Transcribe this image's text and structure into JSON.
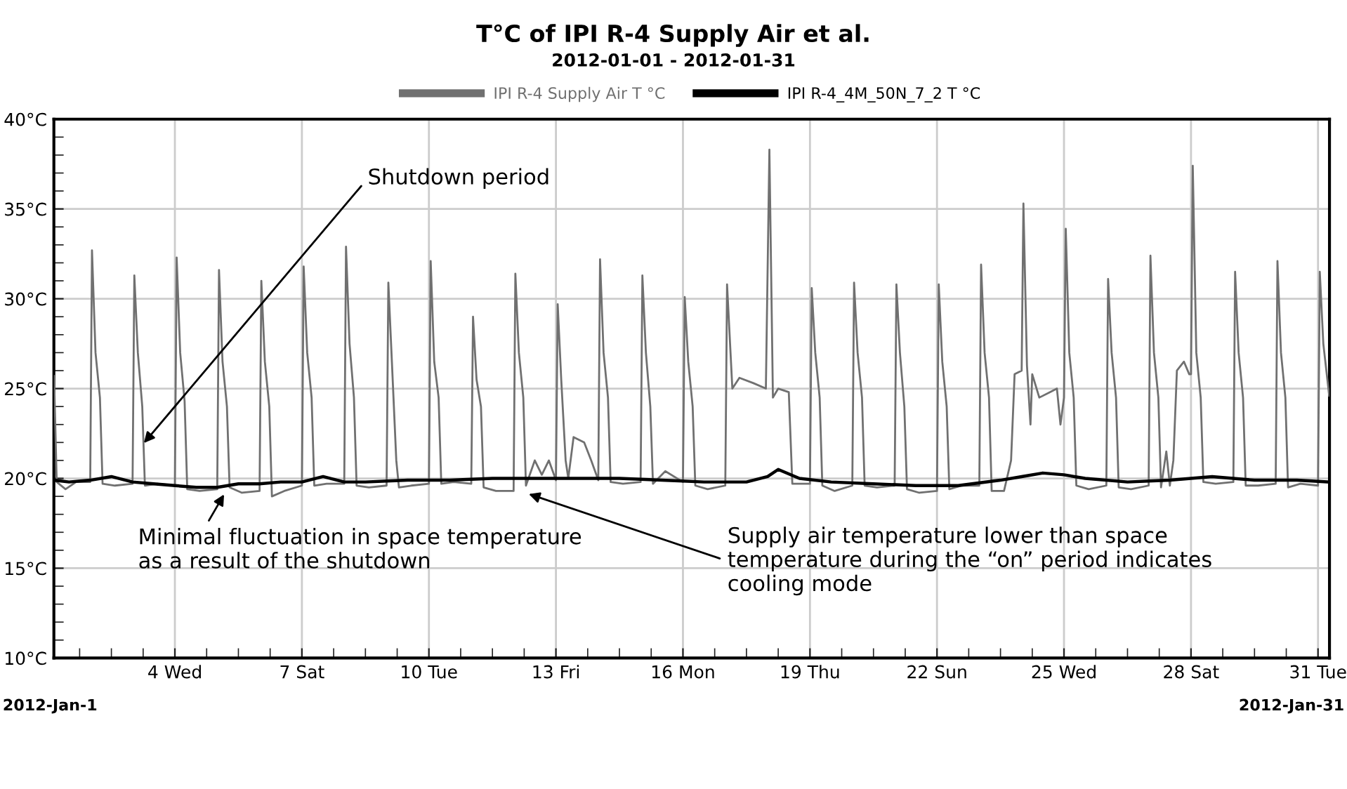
{
  "chart_data": {
    "type": "line",
    "title": "T°C of IPI R-4 Supply Air et al.",
    "subtitle": "2012-01-01 - 2012-01-31",
    "legend": "top",
    "grid": true,
    "marker": "none",
    "line_style": "solid",
    "xlim": [
      "2012-01-01T03:24",
      "2012-01-31T06:30"
    ],
    "xticks": [
      {
        "value": "2012-01-01T18:00",
        "label": null
      },
      {
        "value": "2012-01-02T12:00",
        "label": null
      },
      {
        "value": "2012-01-03T06:00",
        "label": null
      },
      {
        "value": "2012-01-04",
        "label": "4 Wed"
      },
      {
        "value": "2012-01-04T18:00",
        "label": null
      },
      {
        "value": "2012-01-05T12:00",
        "label": null
      },
      {
        "value": "2012-01-06T06:00",
        "label": null
      },
      {
        "value": "2012-01-07",
        "label": "7 Sat"
      },
      {
        "value": "2012-01-07T18:00",
        "label": null
      },
      {
        "value": "2012-01-08T12:00",
        "label": null
      },
      {
        "value": "2012-01-09T06:00",
        "label": null
      },
      {
        "value": "2012-01-10",
        "label": "10 Tue"
      },
      {
        "value": "2012-01-10T18:00",
        "label": null
      },
      {
        "value": "2012-01-11T12:00",
        "label": null
      },
      {
        "value": "2012-01-12T06:00",
        "label": null
      },
      {
        "value": "2012-01-13",
        "label": "13 Fri"
      },
      {
        "value": "2012-01-13T18:00",
        "label": null
      },
      {
        "value": "2012-01-14T12:00",
        "label": null
      },
      {
        "value": "2012-01-15T06:00",
        "label": null
      },
      {
        "value": "2012-01-16",
        "label": "16 Mon"
      },
      {
        "value": "2012-01-16T18:00",
        "label": null
      },
      {
        "value": "2012-01-17T12:00",
        "label": null
      },
      {
        "value": "2012-01-18T06:00",
        "label": null
      },
      {
        "value": "2012-01-19",
        "label": "19 Thu"
      },
      {
        "value": "2012-01-19T18:00",
        "label": null
      },
      {
        "value": "2012-01-20T12:00",
        "label": null
      },
      {
        "value": "2012-01-21T06:00",
        "label": null
      },
      {
        "value": "2012-01-22",
        "label": "22 Sun"
      },
      {
        "value": "2012-01-22T18:00",
        "label": null
      },
      {
        "value": "2012-01-23T12:00",
        "label": null
      },
      {
        "value": "2012-01-24T06:00",
        "label": null
      },
      {
        "value": "2012-01-25",
        "label": "25 Wed"
      },
      {
        "value": "2012-01-25T18:00",
        "label": null
      },
      {
        "value": "2012-01-26T12:00",
        "label": null
      },
      {
        "value": "2012-01-27T06:00",
        "label": null
      },
      {
        "value": "2012-01-28",
        "label": "28 Sat"
      },
      {
        "value": "2012-01-28T18:00",
        "label": null
      },
      {
        "value": "2012-01-29T12:00",
        "label": null
      },
      {
        "value": "2012-01-30T06:00",
        "label": null
      },
      {
        "value": "2012-01-31",
        "label": "31 Tue"
      }
    ],
    "ylim": [
      10,
      40
    ],
    "yticks": [
      {
        "value": 10,
        "label": "10°C"
      },
      {
        "value": 11,
        "label": null
      },
      {
        "value": 12,
        "label": null
      },
      {
        "value": 13,
        "label": null
      },
      {
        "value": 14,
        "label": null
      },
      {
        "value": 15,
        "label": "15°C"
      },
      {
        "value": 16,
        "label": null
      },
      {
        "value": 17,
        "label": null
      },
      {
        "value": 18,
        "label": null
      },
      {
        "value": 19,
        "label": null
      },
      {
        "value": 20,
        "label": "20°C"
      },
      {
        "value": 21,
        "label": null
      },
      {
        "value": 22,
        "label": null
      },
      {
        "value": 23,
        "label": null
      },
      {
        "value": 24,
        "label": null
      },
      {
        "value": 25,
        "label": "25°C"
      },
      {
        "value": 26,
        "label": null
      },
      {
        "value": 27,
        "label": null
      },
      {
        "value": 28,
        "label": null
      },
      {
        "value": 29,
        "label": null
      },
      {
        "value": 30,
        "label": "30°C"
      },
      {
        "value": 31,
        "label": null
      },
      {
        "value": 32,
        "label": null
      },
      {
        "value": 33,
        "label": null
      },
      {
        "value": 34,
        "label": null
      },
      {
        "value": 35,
        "label": "35°C"
      },
      {
        "value": 36,
        "label": null
      },
      {
        "value": 37,
        "label": null
      },
      {
        "value": 38,
        "label": null
      },
      {
        "value": 39,
        "label": null
      },
      {
        "value": 40,
        "label": "40°C"
      }
    ],
    "series": [
      {
        "name": "IPI R-4 Supply Air T °C",
        "color": "#707070",
        "x": [
          "2012-01-01T03:30",
          "2012-01-01T05:00",
          "2012-01-01T10:00",
          "2012-01-01T16:00",
          "2012-01-02T00:00",
          "2012-01-02T01:00",
          "2012-01-02T03:00",
          "2012-01-02T05:30",
          "2012-01-02T07:00",
          "2012-01-02T14:00",
          "2012-01-03T00:00",
          "2012-01-03T01:00",
          "2012-01-03T03:00",
          "2012-01-03T05:30",
          "2012-01-03T07:00",
          "2012-01-03T14:00",
          "2012-01-04T00:00",
          "2012-01-04T01:00",
          "2012-01-04T03:00",
          "2012-01-04T05:30",
          "2012-01-04T07:00",
          "2012-01-04T14:00",
          "2012-01-05T00:00",
          "2012-01-05T01:00",
          "2012-01-05T03:00",
          "2012-01-05T05:30",
          "2012-01-05T07:00",
          "2012-01-05T14:00",
          "2012-01-06T00:00",
          "2012-01-06T01:00",
          "2012-01-06T03:00",
          "2012-01-06T05:30",
          "2012-01-06T07:00",
          "2012-01-06T14:00",
          "2012-01-07T00:00",
          "2012-01-07T01:00",
          "2012-01-07T03:00",
          "2012-01-07T05:30",
          "2012-01-07T07:00",
          "2012-01-07T14:00",
          "2012-01-08T00:00",
          "2012-01-08T01:00",
          "2012-01-08T03:00",
          "2012-01-08T05:30",
          "2012-01-08T07:00",
          "2012-01-08T14:00",
          "2012-01-09T00:00",
          "2012-01-09T01:00",
          "2012-01-09T03:00",
          "2012-01-09T05:30",
          "2012-01-09T07:00",
          "2012-01-09T14:00",
          "2012-01-10T00:00",
          "2012-01-10T01:00",
          "2012-01-10T03:00",
          "2012-01-10T05:30",
          "2012-01-10T07:00",
          "2012-01-10T14:00",
          "2012-01-11T00:00",
          "2012-01-11T01:00",
          "2012-01-11T03:00",
          "2012-01-11T05:30",
          "2012-01-11T07:00",
          "2012-01-11T14:00",
          "2012-01-12T00:00",
          "2012-01-12T01:00",
          "2012-01-12T03:00",
          "2012-01-12T05:30",
          "2012-01-12T07:00",
          "2012-01-12T12:00",
          "2012-01-12T16:00",
          "2012-01-12T20:00",
          "2012-01-13T00:00",
          "2012-01-13T01:00",
          "2012-01-13T03:00",
          "2012-01-13T05:30",
          "2012-01-13T07:00",
          "2012-01-13T10:00",
          "2012-01-13T16:00",
          "2012-01-13T20:00",
          "2012-01-14T00:00",
          "2012-01-14T01:00",
          "2012-01-14T03:00",
          "2012-01-14T05:30",
          "2012-01-14T07:00",
          "2012-01-14T14:00",
          "2012-01-15T00:00",
          "2012-01-15T01:00",
          "2012-01-15T03:00",
          "2012-01-15T05:30",
          "2012-01-15T07:00",
          "2012-01-15T14:00",
          "2012-01-16T00:00",
          "2012-01-16T01:00",
          "2012-01-16T03:00",
          "2012-01-16T05:30",
          "2012-01-16T07:00",
          "2012-01-16T14:00",
          "2012-01-17T00:00",
          "2012-01-17T01:00",
          "2012-01-17T04:00",
          "2012-01-17T08:00",
          "2012-01-17T16:00",
          "2012-01-17T23:00",
          "2012-01-18T01:00",
          "2012-01-18T03:00",
          "2012-01-18T06:00",
          "2012-01-18T12:00",
          "2012-01-18T14:00",
          "2012-01-19T00:00",
          "2012-01-19T01:00",
          "2012-01-19T03:00",
          "2012-01-19T05:30",
          "2012-01-19T07:00",
          "2012-01-19T14:00",
          "2012-01-20T00:00",
          "2012-01-20T01:00",
          "2012-01-20T03:00",
          "2012-01-20T05:30",
          "2012-01-20T07:00",
          "2012-01-20T14:00",
          "2012-01-21T00:00",
          "2012-01-21T01:00",
          "2012-01-21T03:00",
          "2012-01-21T05:30",
          "2012-01-21T07:00",
          "2012-01-21T14:00",
          "2012-01-22T00:00",
          "2012-01-22T01:00",
          "2012-01-22T03:00",
          "2012-01-22T05:30",
          "2012-01-22T07:00",
          "2012-01-22T14:00",
          "2012-01-23T00:00",
          "2012-01-23T01:00",
          "2012-01-23T03:00",
          "2012-01-23T05:30",
          "2012-01-23T07:00",
          "2012-01-23T14:00",
          "2012-01-23T18:00",
          "2012-01-23T20:00",
          "2012-01-24T00:00",
          "2012-01-24T01:00",
          "2012-01-24T03:00",
          "2012-01-24T05:00",
          "2012-01-24T06:00",
          "2012-01-24T10:00",
          "2012-01-24T16:00",
          "2012-01-24T20:00",
          "2012-01-24T22:00",
          "2012-01-25T00:00",
          "2012-01-25T01:00",
          "2012-01-25T03:00",
          "2012-01-25T05:30",
          "2012-01-25T07:00",
          "2012-01-25T14:00",
          "2012-01-26T00:00",
          "2012-01-26T01:00",
          "2012-01-26T03:00",
          "2012-01-26T05:30",
          "2012-01-26T07:00",
          "2012-01-26T14:00",
          "2012-01-27T00:00",
          "2012-01-27T01:00",
          "2012-01-27T03:00",
          "2012-01-27T05:30",
          "2012-01-27T07:00",
          "2012-01-27T10:00",
          "2012-01-27T12:00",
          "2012-01-27T14:00",
          "2012-01-27T16:00",
          "2012-01-27T20:00",
          "2012-01-27T23:00",
          "2012-01-28T00:00",
          "2012-01-28T01:00",
          "2012-01-28T03:00",
          "2012-01-28T05:30",
          "2012-01-28T07:00",
          "2012-01-28T14:00",
          "2012-01-29T00:00",
          "2012-01-29T01:00",
          "2012-01-29T03:00",
          "2012-01-29T05:30",
          "2012-01-29T07:00",
          "2012-01-29T14:00",
          "2012-01-30T00:00",
          "2012-01-30T01:00",
          "2012-01-30T03:00",
          "2012-01-30T05:30",
          "2012-01-30T07:00",
          "2012-01-30T14:00",
          "2012-01-31T00:00",
          "2012-01-31T01:00",
          "2012-01-31T03:00",
          "2012-01-31T06:20"
        ],
        "values": [
          25.7,
          19.8,
          19.4,
          19.8,
          19.8,
          32.7,
          27.0,
          24.5,
          19.7,
          19.6,
          19.7,
          31.3,
          27.0,
          24.0,
          19.6,
          19.7,
          19.6,
          32.3,
          27.0,
          24.3,
          19.4,
          19.3,
          19.4,
          31.6,
          26.5,
          24.0,
          19.5,
          19.2,
          19.3,
          31.0,
          26.5,
          24.0,
          19.0,
          19.3,
          19.6,
          31.8,
          27.0,
          24.5,
          19.6,
          19.7,
          19.7,
          32.9,
          27.5,
          24.5,
          19.6,
          19.5,
          19.6,
          30.9,
          26.5,
          21.0,
          19.5,
          19.6,
          19.7,
          32.1,
          26.5,
          24.5,
          19.7,
          19.8,
          19.7,
          29.0,
          25.5,
          24.0,
          19.5,
          19.3,
          19.3,
          31.4,
          27.0,
          24.5,
          19.6,
          21.0,
          20.2,
          21.0,
          19.9,
          29.7,
          25.5,
          21.0,
          20.0,
          22.3,
          22.0,
          21.0,
          19.9,
          32.2,
          27.0,
          24.5,
          19.8,
          19.7,
          19.8,
          31.3,
          27.0,
          24.0,
          19.7,
          20.4,
          19.8,
          30.1,
          26.5,
          24.0,
          19.6,
          19.4,
          19.6,
          30.8,
          25.0,
          25.6,
          25.3,
          25.0,
          38.3,
          24.5,
          25.0,
          24.8,
          19.7,
          19.7,
          30.6,
          27.0,
          24.5,
          19.6,
          19.3,
          19.6,
          30.9,
          27.0,
          24.5,
          19.6,
          19.5,
          19.6,
          30.8,
          27.0,
          24.0,
          19.4,
          19.2,
          19.3,
          30.8,
          26.5,
          24.0,
          19.4,
          19.6,
          19.6,
          31.9,
          27.0,
          24.5,
          19.3,
          19.3,
          21.0,
          25.8,
          26.0,
          35.3,
          26.3,
          23.0,
          25.8,
          24.5,
          24.8,
          25.0,
          23.0,
          24.5,
          33.9,
          27.0,
          24.5,
          19.6,
          19.4,
          19.6,
          31.1,
          27.0,
          24.5,
          19.5,
          19.4,
          19.6,
          32.4,
          27.0,
          24.5,
          19.5,
          21.5,
          19.6,
          21.0,
          26.0,
          26.5,
          25.8,
          25.8,
          37.4,
          27.0,
          24.5,
          19.8,
          19.7,
          19.8,
          31.5,
          27.0,
          24.5,
          19.6,
          19.6,
          19.7,
          32.1,
          27.0,
          24.5,
          19.5,
          19.7,
          19.6,
          31.5,
          27.5,
          24.6
        ]
      },
      {
        "name": "IPI R-4_4M_50N_7_2 T °C",
        "color": "#000000",
        "x": [
          "2012-01-01T03:30",
          "2012-01-01T12:00",
          "2012-01-02T00:00",
          "2012-01-02T12:00",
          "2012-01-03T00:00",
          "2012-01-03T12:00",
          "2012-01-04T00:00",
          "2012-01-04T12:00",
          "2012-01-05T00:00",
          "2012-01-05T12:00",
          "2012-01-06T00:00",
          "2012-01-06T12:00",
          "2012-01-07T00:00",
          "2012-01-07T12:00",
          "2012-01-08T00:00",
          "2012-01-08T12:00",
          "2012-01-09T12:00",
          "2012-01-10T12:00",
          "2012-01-11T12:00",
          "2012-01-12T12:00",
          "2012-01-13T12:00",
          "2012-01-14T12:00",
          "2012-01-15T12:00",
          "2012-01-16T12:00",
          "2012-01-17T12:00",
          "2012-01-18T00:00",
          "2012-01-18T06:00",
          "2012-01-18T18:00",
          "2012-01-19T12:00",
          "2012-01-20T12:00",
          "2012-01-21T12:00",
          "2012-01-22T12:00",
          "2012-01-23T12:00",
          "2012-01-24T00:00",
          "2012-01-24T12:00",
          "2012-01-25T00:00",
          "2012-01-25T12:00",
          "2012-01-26T12:00",
          "2012-01-27T12:00",
          "2012-01-28T12:00",
          "2012-01-29T12:00",
          "2012-01-30T12:00",
          "2012-01-31T06:20"
        ],
        "values": [
          19.9,
          19.8,
          19.9,
          20.1,
          19.8,
          19.7,
          19.6,
          19.5,
          19.5,
          19.7,
          19.7,
          19.8,
          19.8,
          20.1,
          19.8,
          19.8,
          19.9,
          19.9,
          20.0,
          20.0,
          20.0,
          20.0,
          19.9,
          19.8,
          19.8,
          20.1,
          20.5,
          20.0,
          19.8,
          19.7,
          19.6,
          19.6,
          19.9,
          20.1,
          20.3,
          20.2,
          20.0,
          19.8,
          19.9,
          20.1,
          19.9,
          19.9,
          19.8
        ]
      }
    ],
    "annotations": [
      {
        "text": "Shutdown period",
        "x": "2012-01-03T05:00",
        "y": 21.8
      },
      {
        "text": "Minimal fluctuation in space temperature\nas a result of the shutdown",
        "x": "2012-01-05T05:00",
        "y": 19.3
      },
      {
        "text": "Supply air temperature lower than space\ntemperature during the “on” period indicates\ncooling mode",
        "x": "2012-01-12T06:30",
        "y": 19.2
      },
      "2012-Jan-1",
      "2012-Jan-31"
    ]
  }
}
